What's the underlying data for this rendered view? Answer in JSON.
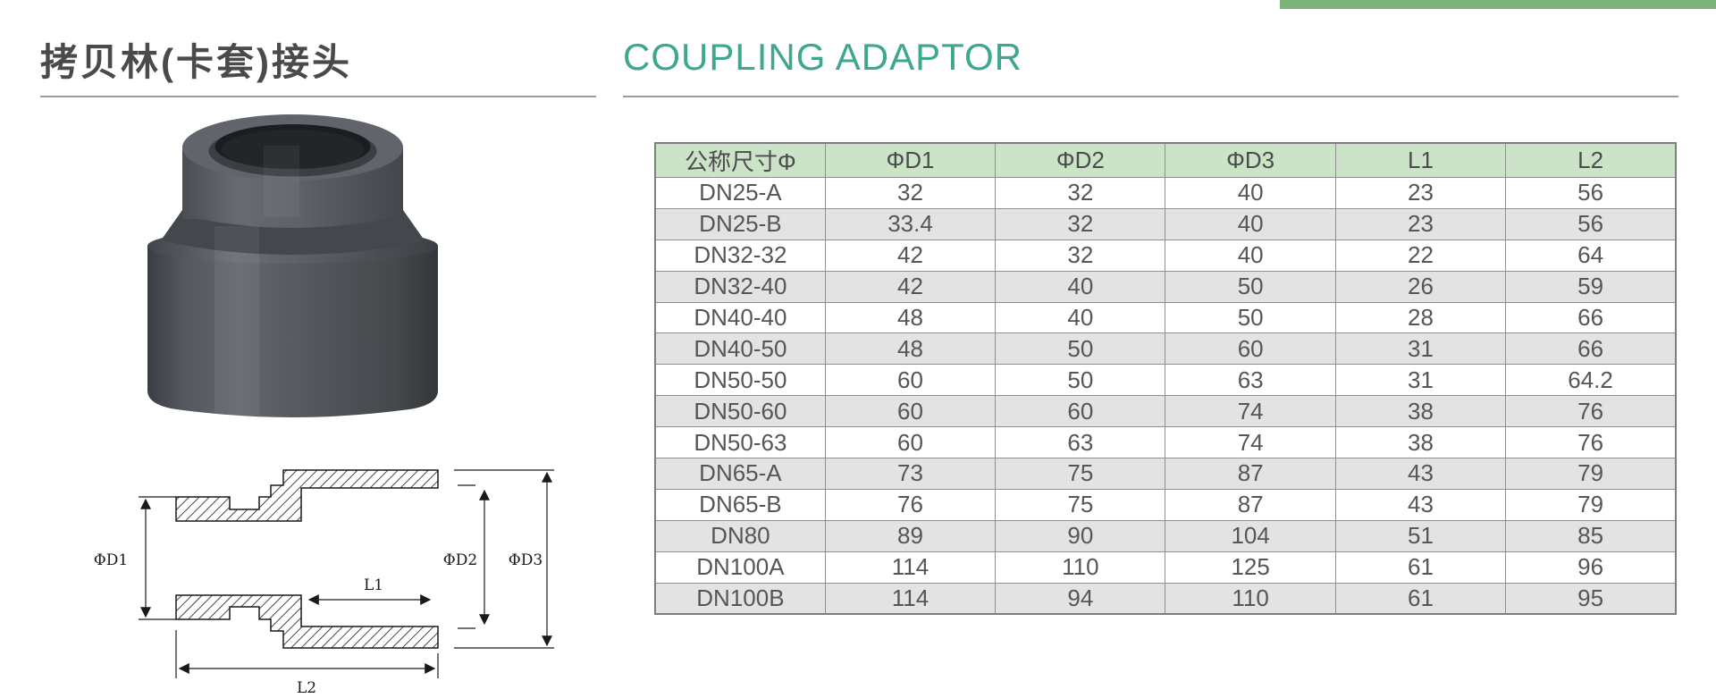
{
  "page": {
    "title_zh": "拷贝林(卡套)接头",
    "title_en": "COUPLING ADAPTOR",
    "accent_bar_color": "#7cb47c",
    "title_en_color": "#3fa78e",
    "rule_color": "#9b9b9b"
  },
  "table": {
    "header_bg": "#cbe3c6",
    "alt_row_bg": "#e3e3e3",
    "headers": [
      "公称尺寸Φ",
      "ΦD1",
      "ΦD2",
      "ΦD3",
      "L1",
      "L2"
    ],
    "rows": [
      [
        "DN25-A",
        "32",
        "32",
        "40",
        "23",
        "56"
      ],
      [
        "DN25-B",
        "33.4",
        "32",
        "40",
        "23",
        "56"
      ],
      [
        "DN32-32",
        "42",
        "32",
        "40",
        "22",
        "64"
      ],
      [
        "DN32-40",
        "42",
        "40",
        "50",
        "26",
        "59"
      ],
      [
        "DN40-40",
        "48",
        "40",
        "50",
        "28",
        "66"
      ],
      [
        "DN40-50",
        "48",
        "50",
        "60",
        "31",
        "66"
      ],
      [
        "DN50-50",
        "60",
        "50",
        "63",
        "31",
        "64.2"
      ],
      [
        "DN50-60",
        "60",
        "60",
        "74",
        "38",
        "76"
      ],
      [
        "DN50-63",
        "60",
        "63",
        "74",
        "38",
        "76"
      ],
      [
        "DN65-A",
        "73",
        "75",
        "87",
        "43",
        "79"
      ],
      [
        "DN65-B",
        "76",
        "75",
        "87",
        "43",
        "79"
      ],
      [
        "DN80",
        "89",
        "90",
        "104",
        "51",
        "85"
      ],
      [
        "DN100A",
        "114",
        "110",
        "125",
        "61",
        "96"
      ],
      [
        "DN100B",
        "114",
        "94",
        "110",
        "61",
        "95"
      ]
    ]
  },
  "drawing": {
    "labels": {
      "d1": "ΦD1",
      "d2": "ΦD2",
      "d3": "ΦD3",
      "l1": "L1",
      "l2": "L2"
    }
  }
}
